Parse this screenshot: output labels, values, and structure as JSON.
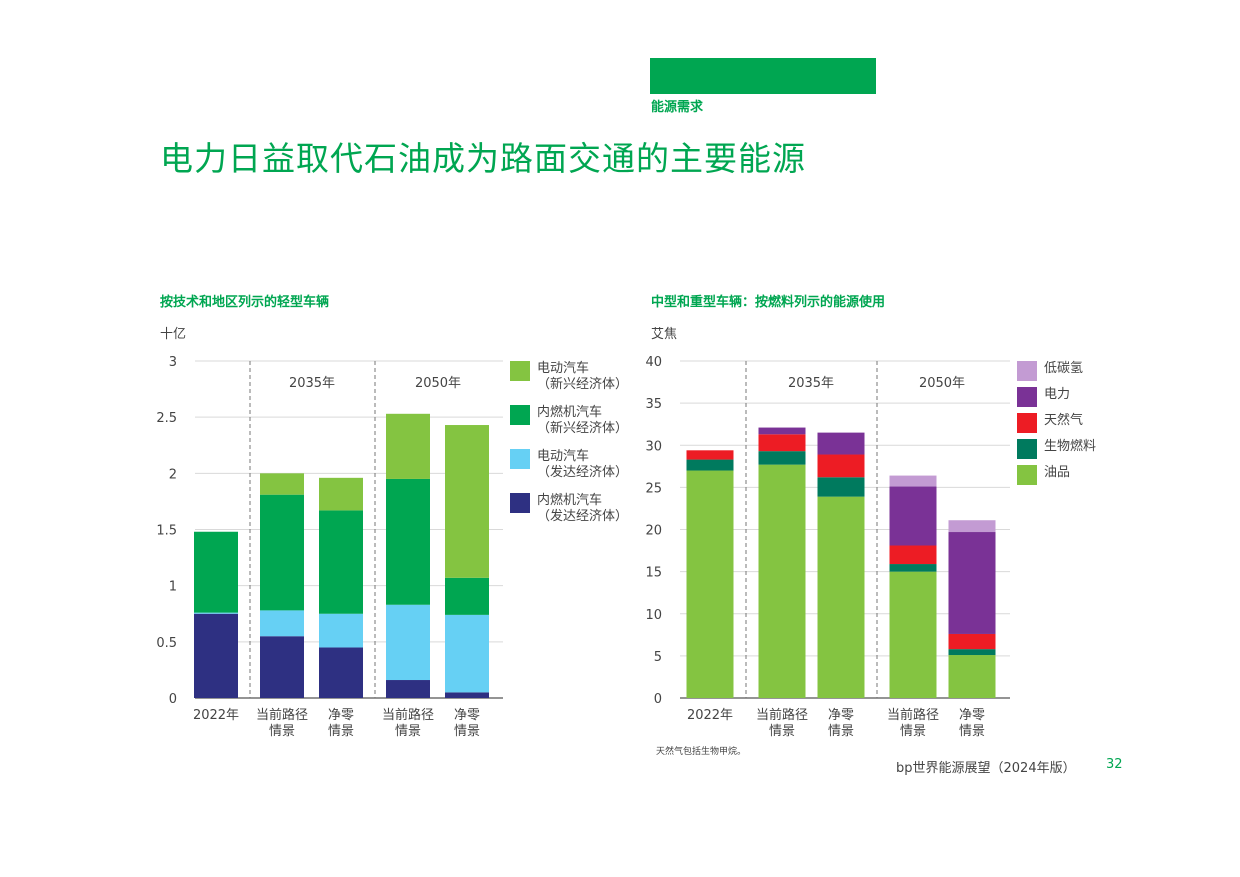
{
  "section": {
    "label": "能源需求",
    "bar_color": "#00a651"
  },
  "page_title": "电力日益取代石油成为路面交通的主要能源",
  "footer": {
    "text": "bp世界能源展望（2024年版）",
    "page_number": "32"
  },
  "chart_data": [
    {
      "type": "bar",
      "stacked": true,
      "title": "按技术和地区列示的轻型车辆",
      "unit": "十亿",
      "ylim": [
        0,
        3
      ],
      "yticks": [
        "0",
        "0.5",
        "1",
        "1.5",
        "2",
        "2.5",
        "3"
      ],
      "yticks_values": [
        0,
        0.5,
        1,
        1.5,
        2,
        2.5,
        3
      ],
      "categories": [
        [
          "2022年"
        ],
        [
          "当前路径",
          "情景"
        ],
        [
          "净零",
          "情景"
        ],
        [
          "当前路径",
          "情景"
        ],
        [
          "净零",
          "情景"
        ]
      ],
      "group_labels": [
        "2035年",
        "2050年"
      ],
      "grid": true,
      "legend_placement": "right",
      "series": [
        {
          "name": [
            "内燃机汽车",
            "（发达经济体）"
          ],
          "color": "#2e3082",
          "values": [
            0.75,
            0.55,
            0.45,
            0.16,
            0.05
          ]
        },
        {
          "name": [
            "电动汽车",
            "（发达经济体）"
          ],
          "color": "#66d0f4",
          "values": [
            0.01,
            0.23,
            0.3,
            0.67,
            0.69
          ]
        },
        {
          "name": [
            "内燃机汽车",
            "（新兴经济体）"
          ],
          "color": "#00a651",
          "values": [
            0.72,
            1.03,
            0.92,
            1.12,
            0.33
          ]
        },
        {
          "name": [
            "电动汽车",
            "（新兴经济体）"
          ],
          "color": "#84c441",
          "values": [
            0.0,
            0.19,
            0.29,
            0.58,
            1.36
          ]
        }
      ]
    },
    {
      "type": "bar",
      "stacked": true,
      "title": "中型和重型车辆：按燃料列示的能源使用",
      "unit": "艾焦",
      "ylim": [
        0,
        40
      ],
      "yticks": [
        "0",
        "5",
        "10",
        "15",
        "20",
        "25",
        "30",
        "35",
        "40"
      ],
      "yticks_values": [
        0,
        5,
        10,
        15,
        20,
        25,
        30,
        35,
        40
      ],
      "categories": [
        [
          "2022年"
        ],
        [
          "当前路径",
          "情景"
        ],
        [
          "净零",
          "情景"
        ],
        [
          "当前路径",
          "情景"
        ],
        [
          "净零",
          "情景"
        ]
      ],
      "group_labels": [
        "2035年",
        "2050年"
      ],
      "grid": true,
      "legend_placement": "right",
      "footnote": "天然气包括生物甲烷。",
      "series": [
        {
          "name": [
            "油品"
          ],
          "color": "#84c441",
          "values": [
            27.0,
            27.7,
            23.9,
            15.0,
            5.1
          ]
        },
        {
          "name": [
            "生物燃料"
          ],
          "color": "#007a5e",
          "values": [
            1.3,
            1.6,
            2.3,
            0.9,
            0.7
          ]
        },
        {
          "name": [
            "天然气"
          ],
          "color": "#ed1c24",
          "values": [
            1.1,
            2.0,
            2.7,
            2.2,
            1.8
          ]
        },
        {
          "name": [
            "电力"
          ],
          "color": "#7a3296",
          "values": [
            0.0,
            0.8,
            2.6,
            7.0,
            12.1
          ]
        },
        {
          "name": [
            "低碳氢"
          ],
          "color": "#c39bd3",
          "values": [
            0.0,
            0.0,
            0.0,
            1.3,
            1.4
          ]
        }
      ]
    }
  ]
}
